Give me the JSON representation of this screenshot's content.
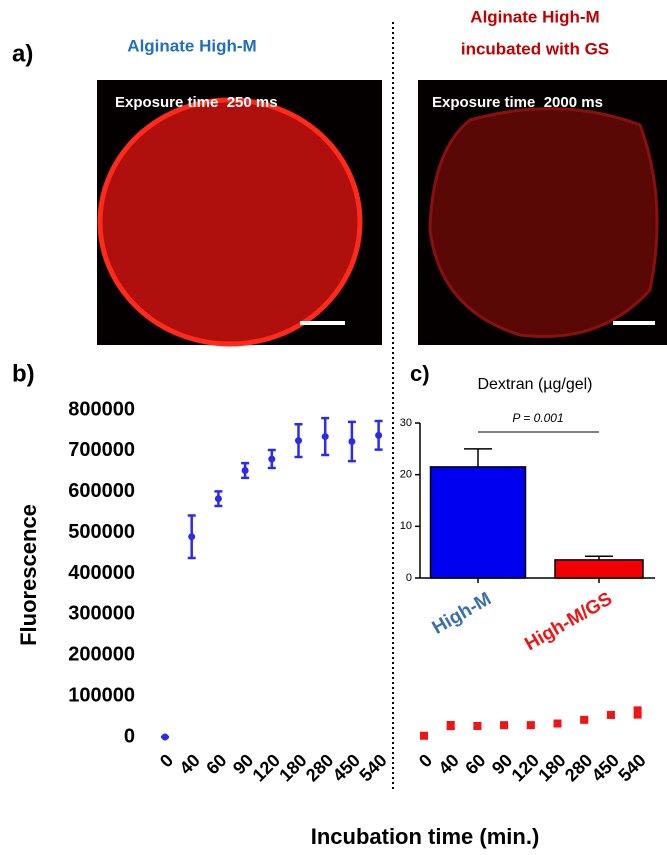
{
  "panel_a": {
    "label": "a)",
    "left_title": "Alginate High-M",
    "right_title": [
      "Alginate High-M",
      "incubated with GS"
    ],
    "left_exposure": "Exposure time  250 ms",
    "right_exposure": "Exposure time  2000 ms"
  },
  "chart_data": [
    {
      "type": "errorbar",
      "panel_label": "b)",
      "x_label": "Incubation time (min.)",
      "y_label": "Fluorescence",
      "categories": [
        "0",
        "40",
        "60",
        "90",
        "120",
        "180",
        "280",
        "450",
        "540"
      ],
      "ylim": [
        0,
        800000
      ],
      "yticks": [
        0,
        100000,
        200000,
        300000,
        400000,
        500000,
        600000,
        700000,
        800000
      ],
      "series": [
        {
          "color": "#2b2bf0",
          "marker": "circle",
          "values": [
            0,
            490000,
            583000,
            652000,
            680000,
            725000,
            735000,
            723000,
            738000
          ],
          "errors": [
            0,
            52000,
            18000,
            18000,
            22000,
            40000,
            45000,
            48000,
            35000
          ]
        },
        {
          "color": "#f01515",
          "marker": "square",
          "values": [
            3000,
            28000,
            27000,
            29000,
            29000,
            33000,
            42000,
            54000,
            60000
          ],
          "errors": [
            0,
            8000,
            5000,
            4000,
            5000,
            4000,
            4000,
            6000,
            12000
          ]
        }
      ]
    },
    {
      "type": "bar",
      "panel_label": "c)",
      "title": "Dextran (µg/gel)",
      "annotation": "P = 0.001",
      "categories": [
        "High-M",
        "High-M/GS"
      ],
      "category_colors": [
        "#3a6fb0",
        "#f01515"
      ],
      "values": [
        21.5,
        3.5
      ],
      "errors": [
        3.5,
        0.7
      ],
      "colors": [
        "#0000f0",
        "#f00000"
      ],
      "ylim": [
        0,
        30
      ],
      "yticks": [
        0,
        10,
        20,
        30
      ]
    }
  ]
}
